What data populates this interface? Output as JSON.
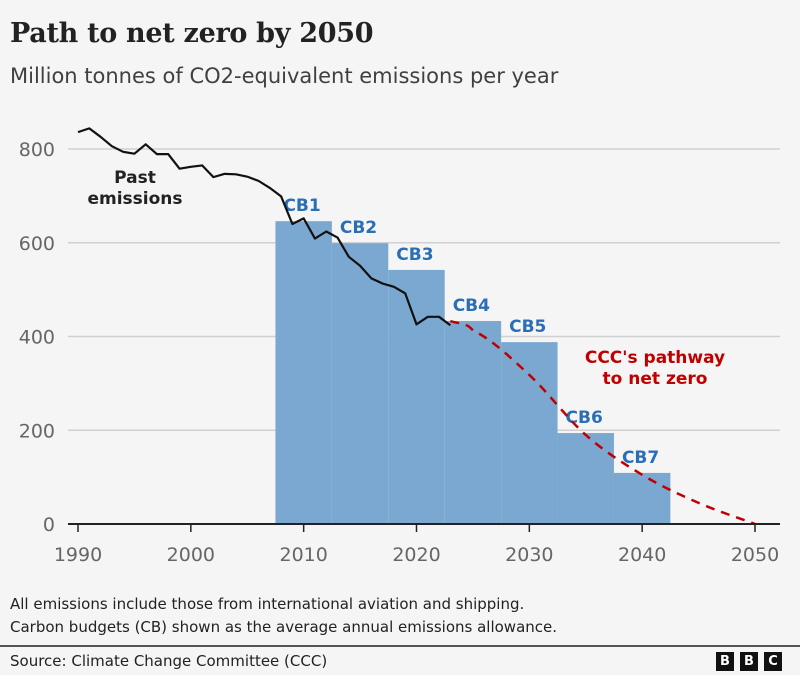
{
  "title": "Path to net zero by 2050",
  "subtitle": "Million tonnes of CO2-equivalent emissions per year",
  "chart_data": {
    "type": "bar+line",
    "title": "Path to net zero by 2050",
    "ylabel": "Million tonnes of CO2-equivalent emissions per year",
    "xlim": [
      1990,
      2050
    ],
    "ylim": [
      0,
      800
    ],
    "x_ticks": [
      "1990",
      "2000",
      "2010",
      "2020",
      "2030",
      "2040",
      "2050"
    ],
    "y_ticks": [
      "0",
      "200",
      "400",
      "600",
      "800"
    ],
    "grid": "horizontal",
    "carbon_budgets": [
      {
        "label": "CB1",
        "start": 2008,
        "end": 2012,
        "value": 646
      },
      {
        "label": "CB2",
        "start": 2013,
        "end": 2017,
        "value": 599
      },
      {
        "label": "CB3",
        "start": 2018,
        "end": 2022,
        "value": 542
      },
      {
        "label": "CB4",
        "start": 2023,
        "end": 2027,
        "value": 433
      },
      {
        "label": "CB5",
        "start": 2028,
        "end": 2032,
        "value": 388
      },
      {
        "label": "CB6",
        "start": 2033,
        "end": 2037,
        "value": 194
      },
      {
        "label": "CB7",
        "start": 2038,
        "end": 2042,
        "value": 109
      }
    ],
    "series": [
      {
        "name": "Past emissions",
        "x": [
          1990,
          1991,
          1992,
          1993,
          1994,
          1995,
          1996,
          1997,
          1998,
          1999,
          2000,
          2001,
          2002,
          2003,
          2004,
          2005,
          2006,
          2007,
          2008,
          2009,
          2010,
          2011,
          2012,
          2013,
          2014,
          2015,
          2016,
          2017,
          2018,
          2019,
          2020,
          2021,
          2022,
          2023
        ],
        "values": [
          836,
          844,
          826,
          806,
          794,
          790,
          810,
          789,
          789,
          758,
          762,
          765,
          740,
          747,
          746,
          741,
          732,
          717,
          699,
          640,
          652,
          609,
          624,
          611,
          570,
          551,
          524,
          513,
          506,
          492,
          426,
          442,
          442,
          424
        ]
      },
      {
        "name": "CCC's pathway to net zero",
        "x": [
          2023,
          2025,
          2030,
          2035,
          2040,
          2045,
          2050
        ],
        "values": [
          433,
          413,
          318,
          190,
          105,
          45,
          0
        ]
      }
    ],
    "annotations": [
      "Past emissions",
      "CCC's pathway to net zero"
    ]
  },
  "labels": {
    "past_line1": "Past",
    "past_line2": "emissions",
    "path_line1": "CCC's pathway",
    "path_line2": "to net zero"
  },
  "notes": [
    "All emissions include those from international aviation and shipping.",
    "Carbon budgets (CB) shown as the average annual emissions allowance."
  ],
  "source": "Source: Climate Change Committee (CCC)",
  "logo": [
    "B",
    "B",
    "C"
  ],
  "colors": {
    "bar": "#7ba8d1",
    "bar_label": "#2a6eb6",
    "past": "#111111",
    "pathway": "#c00000",
    "grid": "#d0d0d0"
  }
}
